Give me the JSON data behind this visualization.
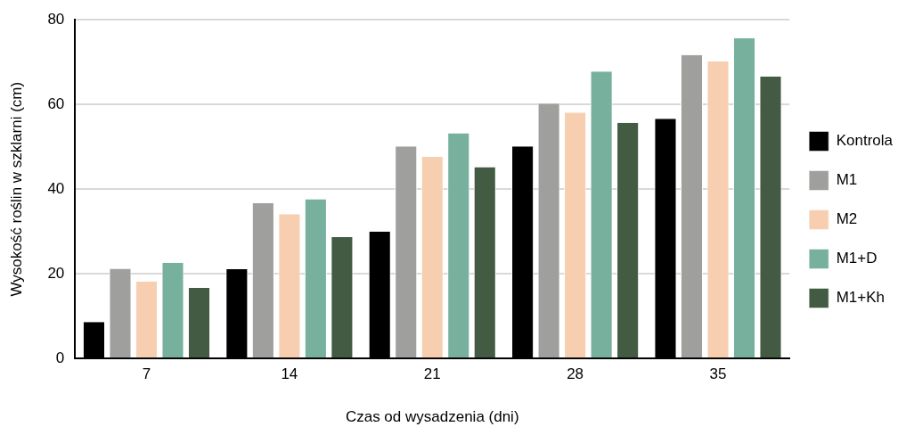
{
  "chart_data": {
    "type": "bar",
    "xlabel": "Czas od wysadzenia (dni)",
    "ylabel": "Wysokość roślin w szklarni (cm)",
    "categories": [
      "7",
      "14",
      "21",
      "28",
      "35"
    ],
    "series": [
      {
        "name": "Kontrola",
        "color": "#000000",
        "values": [
          8.6,
          21.1,
          30.0,
          50.1,
          56.6
        ]
      },
      {
        "name": "M1",
        "color": "#9f9f9d",
        "values": [
          21.2,
          36.7,
          50.1,
          60.2,
          71.7
        ]
      },
      {
        "name": "M2",
        "color": "#f7cfb0",
        "values": [
          18.2,
          34.1,
          47.7,
          58.1,
          70.2
        ]
      },
      {
        "name": "M1+D",
        "color": "#78b09e",
        "values": [
          22.6,
          37.6,
          53.2,
          67.8,
          75.7
        ]
      },
      {
        "name": "M1+Kh",
        "color": "#425b42",
        "values": [
          16.7,
          28.7,
          45.2,
          55.7,
          66.6
        ]
      }
    ],
    "ylim": [
      0,
      80
    ],
    "yticks": [
      0,
      20,
      40,
      60,
      80
    ],
    "grid": "y",
    "legend": "right"
  }
}
